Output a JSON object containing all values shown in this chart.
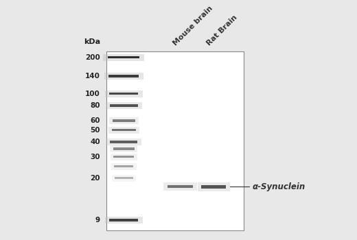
{
  "bg_color": "#e8e8e8",
  "gel_bg": "#ffffff",
  "kda_labels": [
    200,
    140,
    100,
    80,
    60,
    50,
    40,
    30,
    20,
    9
  ],
  "lane_labels": [
    "Mouse brain",
    "Rat Brain"
  ],
  "annotation": "α-Synuclein",
  "annotation_kda": 17,
  "label_fontsize": 7.5,
  "annotation_fontsize": 8.5,
  "col_label_fontsize": 8
}
